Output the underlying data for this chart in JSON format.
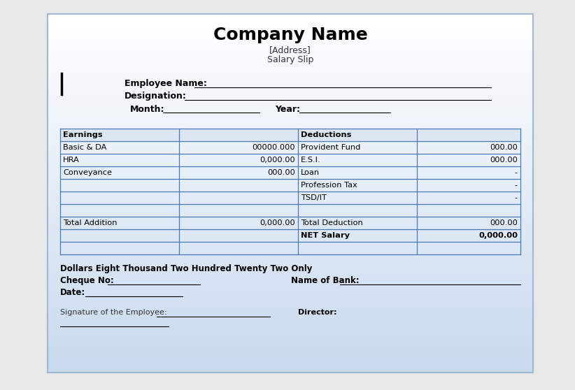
{
  "bg_color": "#e8e8e8",
  "card_border": "#a0b8d0",
  "company_name": "Company Name",
  "address": "[Address]",
  "salary_slip": "Salary Slip",
  "employee_name_label": "Employee Name:",
  "designation_label": "Designation:",
  "month_label": "Month:",
  "year_label": "Year:",
  "earnings_header": "Earnings",
  "deductions_header": "Deductions",
  "earnings_rows": [
    [
      "Basic & DA",
      "00000.000"
    ],
    [
      "HRA",
      "0,000.00"
    ],
    [
      "Conveyance",
      "000.00"
    ],
    [
      "",
      ""
    ],
    [
      "",
      ""
    ]
  ],
  "deductions_rows": [
    [
      "Provident Fund",
      "000.00"
    ],
    [
      "E.S.I.",
      "000.00"
    ],
    [
      "Loan",
      "-"
    ],
    [
      "Profession Tax",
      "-"
    ],
    [
      "TSD/IT",
      "-"
    ]
  ],
  "total_addition_label": "Total Addition",
  "total_addition_value": "0,000.00",
  "total_deduction_label": "Total Deduction",
  "total_deduction_value": "000.00",
  "net_salary_label": "NET Salary",
  "net_salary_value": "0,000.00",
  "dollars_text": "Dollars Eight Thousand Two Hundred Twenty Two Only",
  "cheque_label": "Cheque No:",
  "bank_label": "Name of Bank:",
  "date_label": "Date:",
  "signature_label": "Signature of the Employee:",
  "director_label": "Director:",
  "table_border": "#4a7ab5",
  "header_bg": "#dce6f1"
}
